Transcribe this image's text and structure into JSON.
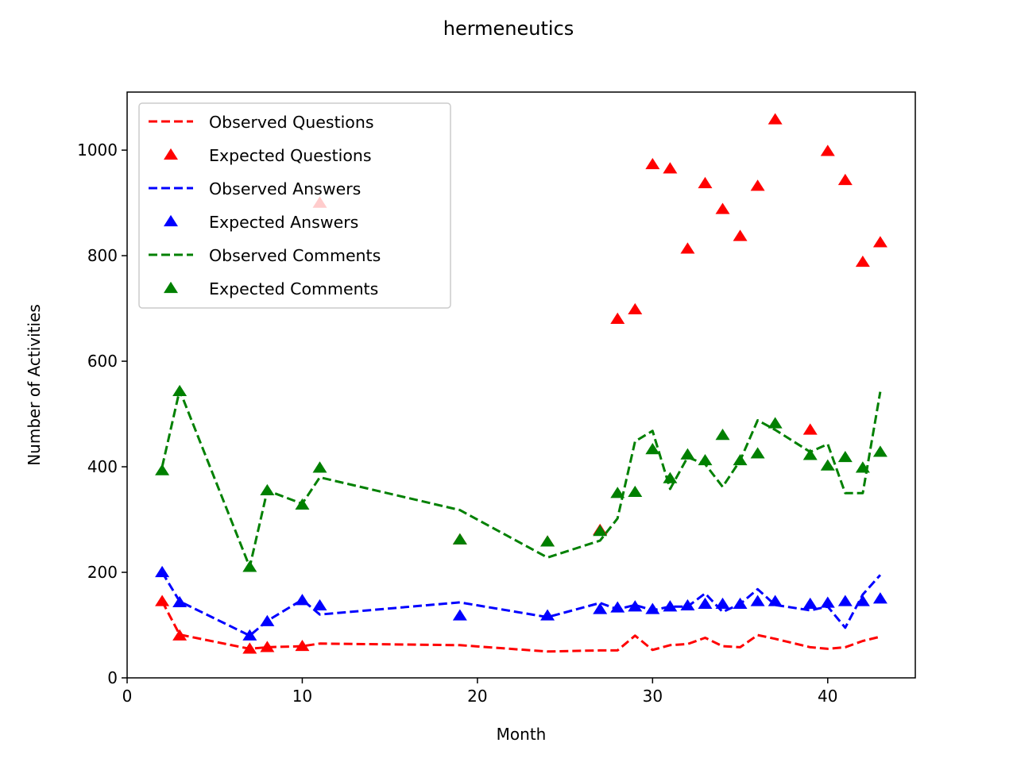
{
  "chart_data": {
    "type": "line",
    "title": "hermeneutics",
    "xlabel": "Month",
    "ylabel": "Number of Activities",
    "xlim": [
      0,
      45
    ],
    "ylim": [
      0,
      1110
    ],
    "xticks": [
      0,
      10,
      20,
      30,
      40
    ],
    "yticks": [
      0,
      200,
      400,
      600,
      800,
      1000
    ],
    "grid": false,
    "legend_position": "top-left",
    "colors": {
      "questions": "#ff0000",
      "answers": "#0000ff",
      "comments": "#008000"
    },
    "series": [
      {
        "name": "Observed Questions",
        "style": "dashed-line",
        "color": "#ff0000",
        "x": [
          2,
          3,
          7,
          8,
          10,
          11,
          19,
          24,
          27,
          28,
          29,
          30,
          31,
          32,
          33,
          34,
          35,
          36,
          37,
          39,
          40,
          41,
          42,
          43
        ],
        "y": [
          145,
          82,
          55,
          58,
          60,
          65,
          62,
          50,
          52,
          52,
          80,
          53,
          62,
          64,
          76,
          60,
          58,
          81,
          74,
          58,
          55,
          58,
          70,
          78
        ]
      },
      {
        "name": "Expected Questions",
        "style": "triangle-marker",
        "color": "#ff0000",
        "x": [
          2,
          3,
          7,
          8,
          10,
          11,
          19,
          24,
          27,
          28,
          29,
          30,
          31,
          32,
          33,
          34,
          35,
          36,
          37,
          39,
          40,
          41,
          42,
          43
        ],
        "y": [
          145,
          80,
          55,
          58,
          60,
          900,
          262,
          258,
          280,
          680,
          698,
          973,
          965,
          813,
          937,
          888,
          837,
          932,
          1058,
          470,
          998,
          943,
          788,
          825
        ]
      },
      {
        "name": "Observed Answers",
        "style": "dashed-line",
        "color": "#0000ff",
        "x": [
          2,
          3,
          7,
          8,
          10,
          11,
          19,
          24,
          27,
          28,
          29,
          30,
          31,
          32,
          33,
          34,
          35,
          36,
          37,
          39,
          40,
          41,
          42,
          43
        ],
        "y": [
          200,
          145,
          80,
          108,
          148,
          120,
          143,
          115,
          142,
          130,
          138,
          128,
          135,
          135,
          160,
          125,
          140,
          168,
          138,
          128,
          135,
          95,
          158,
          195
        ]
      },
      {
        "name": "Expected Answers",
        "style": "triangle-marker",
        "color": "#0000ff",
        "x": [
          2,
          3,
          7,
          8,
          10,
          11,
          19,
          24,
          27,
          28,
          29,
          30,
          31,
          32,
          33,
          34,
          35,
          36,
          37,
          39,
          40,
          41,
          42,
          43
        ],
        "y": [
          200,
          143,
          80,
          107,
          147,
          137,
          118,
          118,
          130,
          133,
          135,
          130,
          135,
          137,
          140,
          140,
          140,
          145,
          145,
          140,
          142,
          145,
          145,
          150
        ]
      },
      {
        "name": "Observed Comments",
        "style": "dashed-line",
        "color": "#008000",
        "x": [
          2,
          3,
          7,
          8,
          10,
          11,
          19,
          24,
          27,
          28,
          29,
          30,
          31,
          32,
          33,
          34,
          35,
          36,
          37,
          39,
          40,
          41,
          42,
          43
        ],
        "y": [
          400,
          545,
          210,
          355,
          330,
          380,
          318,
          228,
          260,
          302,
          448,
          468,
          358,
          418,
          405,
          362,
          412,
          488,
          470,
          428,
          443,
          350,
          350,
          542
        ]
      },
      {
        "name": "Expected Comments",
        "style": "triangle-marker",
        "color": "#008000",
        "x": [
          2,
          3,
          7,
          8,
          10,
          11,
          19,
          24,
          27,
          28,
          29,
          30,
          31,
          32,
          33,
          34,
          35,
          36,
          37,
          39,
          40,
          41,
          42,
          43
        ],
        "y": [
          393,
          543,
          210,
          355,
          328,
          398,
          262,
          258,
          278,
          350,
          352,
          433,
          378,
          423,
          412,
          460,
          412,
          425,
          482,
          422,
          402,
          418,
          398,
          428
        ]
      }
    ]
  }
}
